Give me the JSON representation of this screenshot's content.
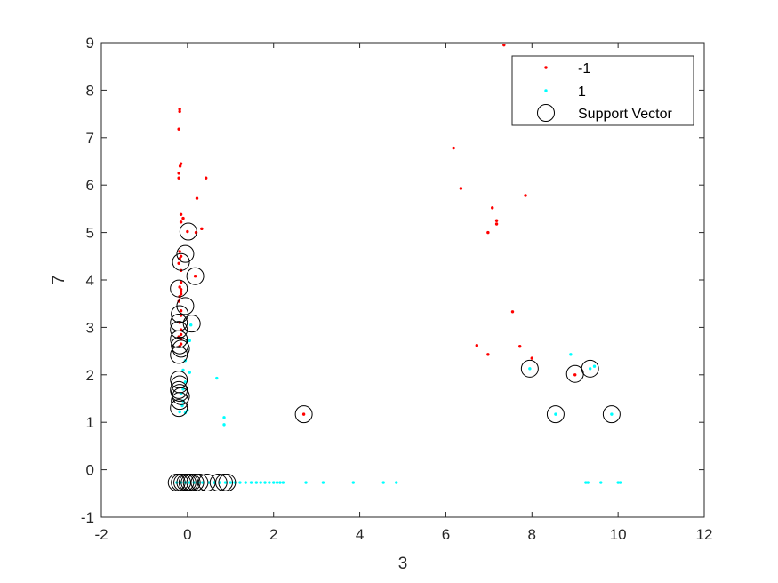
{
  "chart_data": {
    "type": "scatter",
    "xlabel": "3",
    "ylabel": "7",
    "xlim": [
      -2,
      12
    ],
    "ylim": [
      -1,
      9
    ],
    "xticks": [
      "-2",
      "0",
      "2",
      "4",
      "6",
      "8",
      "10",
      "12"
    ],
    "yticks": [
      "-1",
      "0",
      "1",
      "2",
      "3",
      "4",
      "5",
      "6",
      "7",
      "8",
      "9"
    ],
    "grid": false,
    "legend_position": "top-right",
    "legend": [
      "-1",
      "1",
      "Support Vector"
    ],
    "series": [
      {
        "name": "-1",
        "color": "#ff0000",
        "marker": "dot",
        "points": [
          [
            -0.18,
            7.6
          ],
          [
            -0.18,
            7.55
          ],
          [
            -0.2,
            7.18
          ],
          [
            -0.15,
            6.45
          ],
          [
            -0.17,
            6.4
          ],
          [
            -0.2,
            6.25
          ],
          [
            -0.2,
            6.15
          ],
          [
            0.43,
            6.15
          ],
          [
            0.22,
            5.72
          ],
          [
            -0.15,
            5.38
          ],
          [
            -0.1,
            5.3
          ],
          [
            -0.15,
            5.22
          ],
          [
            0.0,
            5.02
          ],
          [
            0.33,
            5.08
          ],
          [
            0.2,
            5.0
          ],
          [
            -0.18,
            4.6
          ],
          [
            -0.15,
            4.5
          ],
          [
            -0.18,
            4.45
          ],
          [
            -0.2,
            4.35
          ],
          [
            -0.15,
            4.2
          ],
          [
            0.18,
            4.08
          ],
          [
            -0.15,
            3.95
          ],
          [
            -0.18,
            3.85
          ],
          [
            -0.15,
            3.8
          ],
          [
            -0.15,
            3.75
          ],
          [
            -0.15,
            3.7
          ],
          [
            -0.18,
            3.65
          ],
          [
            -0.2,
            3.55
          ],
          [
            -0.15,
            3.35
          ],
          [
            -0.15,
            3.25
          ],
          [
            -0.18,
            3.1
          ],
          [
            -0.15,
            2.95
          ],
          [
            -0.15,
            2.85
          ],
          [
            -0.2,
            2.8
          ],
          [
            -0.15,
            2.75
          ],
          [
            -0.15,
            2.65
          ],
          [
            -0.18,
            2.6
          ],
          [
            2.7,
            1.17
          ],
          [
            7.35,
            8.95
          ],
          [
            6.18,
            6.78
          ],
          [
            6.35,
            5.93
          ],
          [
            7.85,
            5.78
          ],
          [
            7.08,
            5.52
          ],
          [
            7.18,
            5.25
          ],
          [
            7.18,
            5.18
          ],
          [
            6.98,
            5.0
          ],
          [
            7.55,
            3.33
          ],
          [
            6.72,
            2.62
          ],
          [
            7.72,
            2.6
          ],
          [
            6.98,
            2.43
          ],
          [
            8.0,
            2.35
          ],
          [
            9.0,
            2.0
          ]
        ]
      },
      {
        "name": "1",
        "color": "#00ffff",
        "marker": "dot",
        "points": [
          [
            0.08,
            3.05
          ],
          [
            0.05,
            2.72
          ],
          [
            -0.05,
            2.3
          ],
          [
            -0.1,
            2.1
          ],
          [
            0.05,
            2.05
          ],
          [
            -0.05,
            1.85
          ],
          [
            -0.1,
            1.7
          ],
          [
            -0.15,
            1.6
          ],
          [
            -0.1,
            1.45
          ],
          [
            -0.12,
            1.35
          ],
          [
            -0.18,
            1.22
          ],
          [
            -0.05,
            1.2
          ],
          [
            0.0,
            1.25
          ],
          [
            0.68,
            1.93
          ],
          [
            0.85,
            1.1
          ],
          [
            0.85,
            0.95
          ],
          [
            -0.25,
            -0.27
          ],
          [
            -0.15,
            -0.27
          ],
          [
            -0.05,
            -0.27
          ],
          [
            0.05,
            -0.27
          ],
          [
            0.15,
            -0.27
          ],
          [
            0.25,
            -0.27
          ],
          [
            0.35,
            -0.27
          ],
          [
            0.5,
            -0.27
          ],
          [
            0.62,
            -0.27
          ],
          [
            0.75,
            -0.27
          ],
          [
            0.88,
            -0.27
          ],
          [
            1.0,
            -0.27
          ],
          [
            1.1,
            -0.27
          ],
          [
            1.22,
            -0.27
          ],
          [
            1.35,
            -0.27
          ],
          [
            1.48,
            -0.27
          ],
          [
            1.6,
            -0.27
          ],
          [
            1.7,
            -0.27
          ],
          [
            1.8,
            -0.27
          ],
          [
            1.9,
            -0.27
          ],
          [
            2.0,
            -0.27
          ],
          [
            2.08,
            -0.27
          ],
          [
            2.15,
            -0.27
          ],
          [
            2.22,
            -0.27
          ],
          [
            2.75,
            -0.27
          ],
          [
            3.15,
            -0.27
          ],
          [
            3.85,
            -0.27
          ],
          [
            4.55,
            -0.27
          ],
          [
            4.85,
            -0.27
          ],
          [
            9.25,
            -0.27
          ],
          [
            9.3,
            -0.27
          ],
          [
            9.6,
            -0.27
          ],
          [
            10.0,
            -0.27
          ],
          [
            10.05,
            -0.27
          ],
          [
            8.9,
            2.43
          ],
          [
            7.95,
            2.13
          ],
          [
            9.35,
            2.13
          ],
          [
            9.45,
            2.18
          ],
          [
            8.55,
            1.17
          ],
          [
            9.85,
            1.17
          ]
        ]
      },
      {
        "name": "Support Vector",
        "color": "#000000",
        "marker": "circle",
        "points": [
          [
            0.02,
            5.02
          ],
          [
            -0.05,
            4.55
          ],
          [
            -0.15,
            4.38
          ],
          [
            0.18,
            4.08
          ],
          [
            -0.2,
            3.82
          ],
          [
            -0.05,
            3.45
          ],
          [
            0.1,
            3.08
          ],
          [
            -0.18,
            3.28
          ],
          [
            -0.2,
            3.1
          ],
          [
            -0.2,
            2.95
          ],
          [
            -0.2,
            2.75
          ],
          [
            -0.18,
            2.62
          ],
          [
            -0.15,
            2.55
          ],
          [
            -0.2,
            2.42
          ],
          [
            -0.2,
            1.9
          ],
          [
            -0.18,
            1.8
          ],
          [
            -0.2,
            1.68
          ],
          [
            -0.18,
            1.62
          ],
          [
            -0.15,
            1.55
          ],
          [
            -0.18,
            1.45
          ],
          [
            -0.2,
            1.3
          ],
          [
            2.7,
            1.17
          ],
          [
            7.95,
            2.13
          ],
          [
            9.0,
            2.02
          ],
          [
            9.35,
            2.13
          ],
          [
            8.55,
            1.17
          ],
          [
            9.85,
            1.17
          ],
          [
            -0.25,
            -0.27
          ],
          [
            -0.18,
            -0.27
          ],
          [
            -0.12,
            -0.27
          ],
          [
            -0.05,
            -0.27
          ],
          [
            0.0,
            -0.27
          ],
          [
            0.05,
            -0.27
          ],
          [
            0.1,
            -0.27
          ],
          [
            0.18,
            -0.27
          ],
          [
            0.28,
            -0.27
          ],
          [
            0.45,
            -0.27
          ],
          [
            0.72,
            -0.27
          ],
          [
            0.85,
            -0.27
          ],
          [
            0.92,
            -0.27
          ]
        ]
      }
    ]
  }
}
